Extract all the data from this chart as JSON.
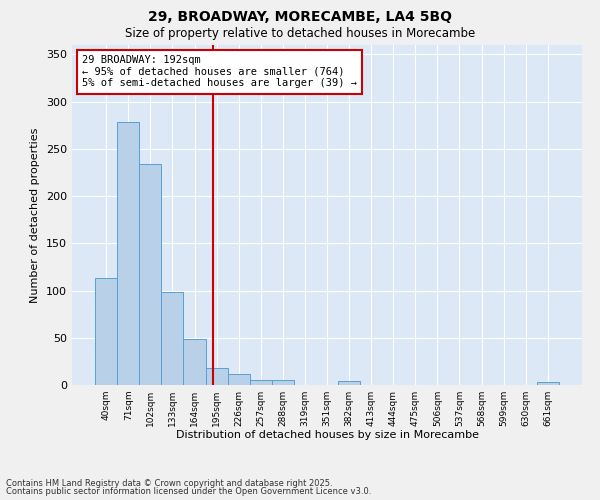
{
  "title1": "29, BROADWAY, MORECAMBE, LA4 5BQ",
  "title2": "Size of property relative to detached houses in Morecambe",
  "xlabel": "Distribution of detached houses by size in Morecambe",
  "ylabel": "Number of detached properties",
  "categories": [
    "40sqm",
    "71sqm",
    "102sqm",
    "133sqm",
    "164sqm",
    "195sqm",
    "226sqm",
    "257sqm",
    "288sqm",
    "319sqm",
    "351sqm",
    "382sqm",
    "413sqm",
    "444sqm",
    "475sqm",
    "506sqm",
    "537sqm",
    "568sqm",
    "599sqm",
    "630sqm",
    "661sqm"
  ],
  "values": [
    113,
    278,
    234,
    98,
    49,
    18,
    12,
    5,
    5,
    0,
    0,
    4,
    0,
    0,
    0,
    0,
    0,
    0,
    0,
    0,
    3
  ],
  "bar_color": "#b8d0e8",
  "bar_edge_color": "#5a9fd4",
  "ylim": [
    0,
    360
  ],
  "yticks": [
    0,
    50,
    100,
    150,
    200,
    250,
    300,
    350
  ],
  "vline_x": 4.84,
  "vline_color": "#cc0000",
  "annotation_text": "29 BROADWAY: 192sqm\n← 95% of detached houses are smaller (764)\n5% of semi-detached houses are larger (39) →",
  "annotation_box_color": "#cc0000",
  "fig_bg_color": "#f0f0f0",
  "axes_bg_color": "#dce8f5",
  "grid_color": "#ffffff",
  "footer1": "Contains HM Land Registry data © Crown copyright and database right 2025.",
  "footer2": "Contains public sector information licensed under the Open Government Licence v3.0."
}
